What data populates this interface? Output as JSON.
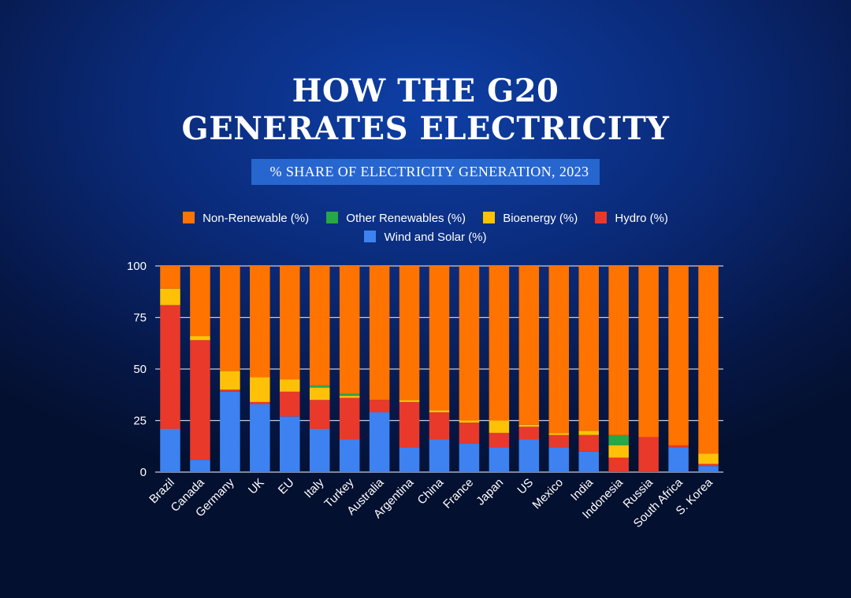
{
  "title": {
    "line1": "HOW THE G20",
    "line2": "GENERATES ELECTRICITY"
  },
  "subtitle": "% SHARE OF ELECTRICITY GENERATION, 2023",
  "colors": {
    "Non-Renewable (%)": "#ff7300",
    "Other Renewables (%)": "#28a745",
    "Bioenergy (%)": "#ffc107",
    "Hydro (%)": "#e8392b",
    "Wind and Solar (%)": "#3d82f0",
    "grid": "#c7ccd8",
    "tick_text": "#ffffff"
  },
  "legend": [
    "Non-Renewable (%)",
    "Other Renewables (%)",
    "Bioenergy (%)",
    "Hydro (%)",
    "Wind and Solar (%)"
  ],
  "chart_data": {
    "type": "bar",
    "stacked": true,
    "categories": [
      "Brazil",
      "Canada",
      "Germany",
      "UK",
      "EU",
      "Italy",
      "Turkey",
      "Australia",
      "Argentina",
      "China",
      "France",
      "Japan",
      "US",
      "Mexico",
      "India",
      "Indonesia",
      "Russia",
      "South Africa",
      "S. Korea"
    ],
    "series": [
      {
        "name": "Wind and Solar (%)",
        "values": [
          21,
          6,
          39,
          33,
          27,
          21,
          16,
          29,
          12,
          16,
          14,
          12,
          16,
          12,
          10,
          0,
          0,
          12,
          3
        ]
      },
      {
        "name": "Hydro (%)",
        "values": [
          60,
          58,
          1,
          1,
          12,
          14,
          20,
          6,
          22,
          13,
          10,
          7,
          6,
          6,
          8,
          7,
          17,
          1,
          1
        ]
      },
      {
        "name": "Bioenergy (%)",
        "values": [
          8,
          2,
          9,
          12,
          6,
          6,
          1,
          0,
          1,
          1,
          1,
          6,
          1,
          1,
          2,
          6,
          0,
          0,
          5
        ]
      },
      {
        "name": "Other Renewables (%)",
        "values": [
          0,
          0,
          0,
          0,
          0,
          1,
          1,
          0,
          0,
          0,
          0,
          0,
          0,
          0,
          0,
          5,
          0,
          0,
          0
        ]
      },
      {
        "name": "Non-Renewable (%)",
        "values": [
          11,
          34,
          51,
          54,
          55,
          58,
          62,
          65,
          65,
          70,
          75,
          75,
          77,
          81,
          80,
          82,
          83,
          87,
          91
        ]
      }
    ],
    "ylim": [
      0,
      100
    ],
    "yticks": [
      0,
      25,
      50,
      75,
      100
    ],
    "grid": true,
    "legend_position": "top-center",
    "xlabel": "",
    "ylabel": ""
  }
}
